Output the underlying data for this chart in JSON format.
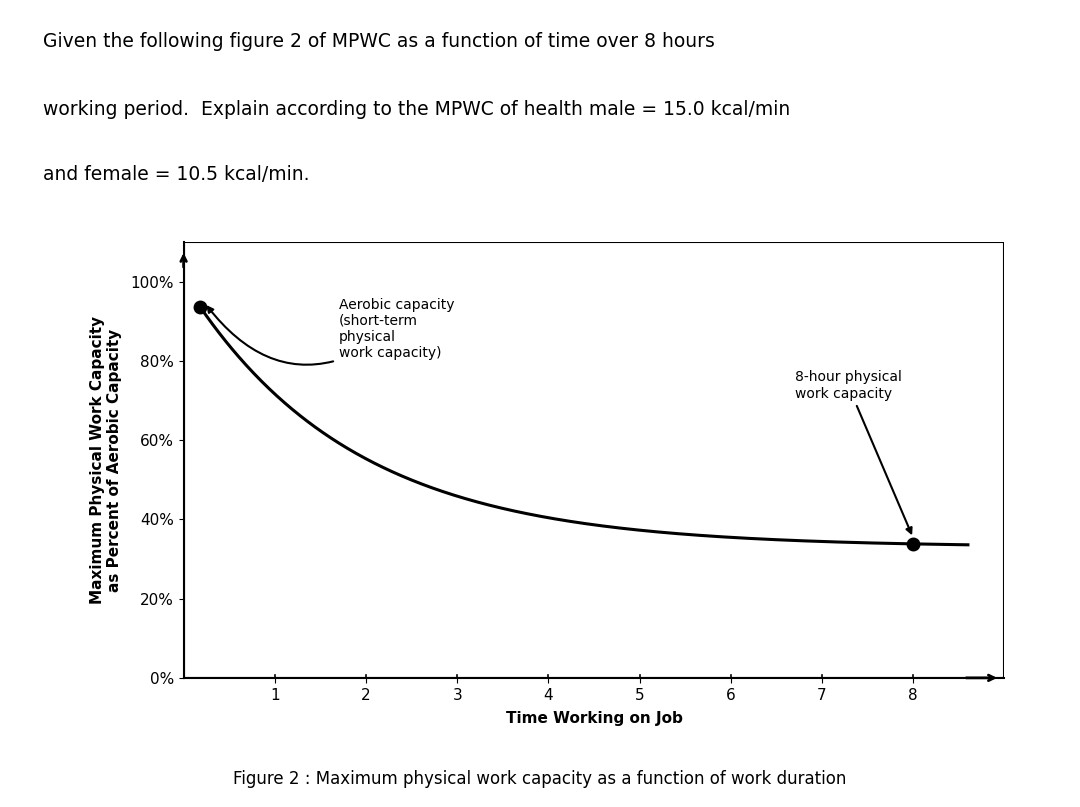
{
  "title_text_line1": "Given the following figure 2 of MPWC as a function of time over 8 hours",
  "title_text_line2": "working period.  Explain according to the MPWC of health male = 15.0 kcal/min",
  "title_text_line3": "and female = 10.5 kcal/min.",
  "figure_caption": "Figure 2 : Maximum physical work capacity as a function of work duration",
  "ylabel_line1": "Maximum Physical Work Capacity",
  "ylabel_line2": "as Percent of Aerobic Capacity",
  "xlabel": "Time Working on Job",
  "yticks": [
    0,
    20,
    40,
    60,
    80,
    100
  ],
  "ytick_labels": [
    "0%",
    "20%",
    "40%",
    "60%",
    "80%",
    "100%"
  ],
  "xticks": [
    1,
    2,
    3,
    4,
    5,
    6,
    7,
    8
  ],
  "xlim": [
    0,
    9.0
  ],
  "ylim": [
    0,
    110
  ],
  "curve_color": "#000000",
  "dot_color": "#000000",
  "dot_size": 9,
  "annotation_aerobic": "Aerobic capacity\n(short-term\nphysical\nwork capacity)",
  "annotation_8hour": "8-hour physical\nwork capacity",
  "background_color": "#ffffff",
  "plot_bg_color": "#ffffff",
  "border_color": "#000000",
  "font_size_title": 13.5,
  "font_size_axis_label": 11,
  "font_size_ticks": 11,
  "font_size_caption": 12,
  "font_size_annotation": 10,
  "curve_a": 67,
  "curve_b": 0.55,
  "curve_c": 33,
  "x_start": 0.18,
  "x_end": 8.0
}
